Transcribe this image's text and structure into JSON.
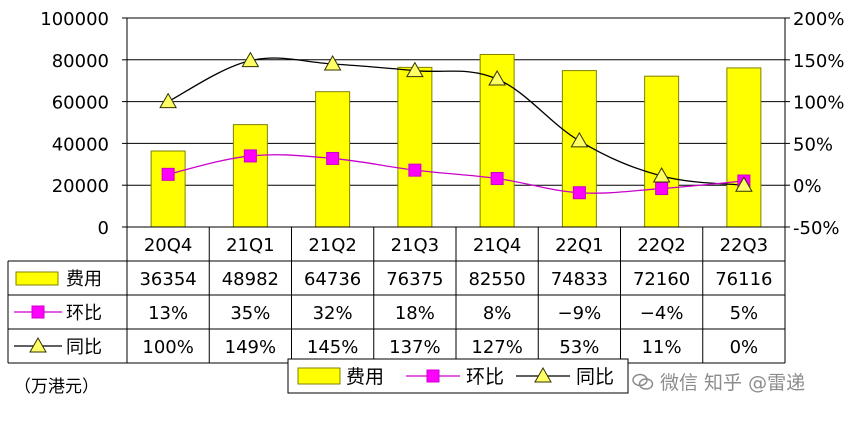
{
  "unit_label": "（万港元）",
  "watermark_text": "微信 知乎 @雷递",
  "colors": {
    "bar_fill": "#ffff00",
    "bar_stroke": "#808000",
    "qoq_line": "#cc00cc",
    "qoq_marker": "#ff00ff",
    "yoy_line": "#000000",
    "yoy_marker": "#ffff66"
  },
  "chart_data": {
    "type": "bar",
    "categories": [
      "20Q4",
      "21Q1",
      "21Q2",
      "21Q3",
      "21Q4",
      "22Q1",
      "22Q2",
      "22Q3"
    ],
    "left_axis": {
      "ylim": [
        0,
        100000
      ],
      "ticks": [
        "100000",
        "80000",
        "60000",
        "40000",
        "20000",
        "0"
      ],
      "tick_values": [
        100000,
        80000,
        60000,
        40000,
        20000,
        0
      ]
    },
    "right_axis": {
      "ylim": [
        -50,
        200
      ],
      "ticks": [
        "200%",
        "150%",
        "100%",
        "50%",
        "0%",
        "-50%"
      ],
      "tick_values": [
        200,
        150,
        100,
        50,
        0,
        -50
      ]
    },
    "grid": "horizontal",
    "legend_position": "bottom",
    "legend": [
      "费用",
      "环比",
      "同比"
    ],
    "series": [
      {
        "name": "费用",
        "kind": "bar",
        "axis": "left",
        "values": [
          36354,
          48982,
          64736,
          76375,
          82550,
          74833,
          72160,
          76116
        ],
        "labels": [
          "36354",
          "48982",
          "64736",
          "76375",
          "82550",
          "74833",
          "72160",
          "76116"
        ]
      },
      {
        "name": "环比",
        "kind": "line",
        "axis": "right",
        "values": [
          13,
          35,
          32,
          18,
          8,
          -9,
          -4,
          5
        ],
        "labels": [
          "13%",
          "35%",
          "32%",
          "18%",
          "8%",
          "−9%",
          "−4%",
          "5%"
        ]
      },
      {
        "name": "同比",
        "kind": "line",
        "axis": "right",
        "values": [
          100,
          149,
          145,
          137,
          127,
          53,
          11,
          0
        ],
        "labels": [
          "100%",
          "149%",
          "145%",
          "137%",
          "127%",
          "53%",
          "11%",
          "0%"
        ]
      }
    ]
  }
}
